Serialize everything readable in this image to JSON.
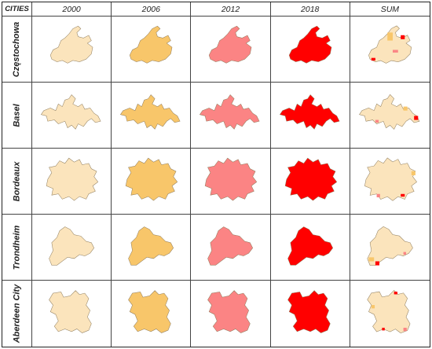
{
  "header": {
    "cities": "CITIES",
    "years": [
      "2000",
      "2006",
      "2012",
      "2018"
    ],
    "sum": "SUM"
  },
  "cities": [
    "Częstochowa",
    "Basel",
    "Bordeaux",
    "Trondheim",
    "Aberdeen City"
  ],
  "colors": {
    "2000": "#fbe4bc",
    "2006": "#f8c66a",
    "2012": "#fb8484",
    "2018": "#ff0000",
    "sum_base": "#fbe4bc",
    "sum_2006": "#f8c66a",
    "sum_2012": "#fb8484",
    "sum_2018": "#ff0000",
    "outline": "#8c7a5a",
    "grid": "#444444"
  }
}
